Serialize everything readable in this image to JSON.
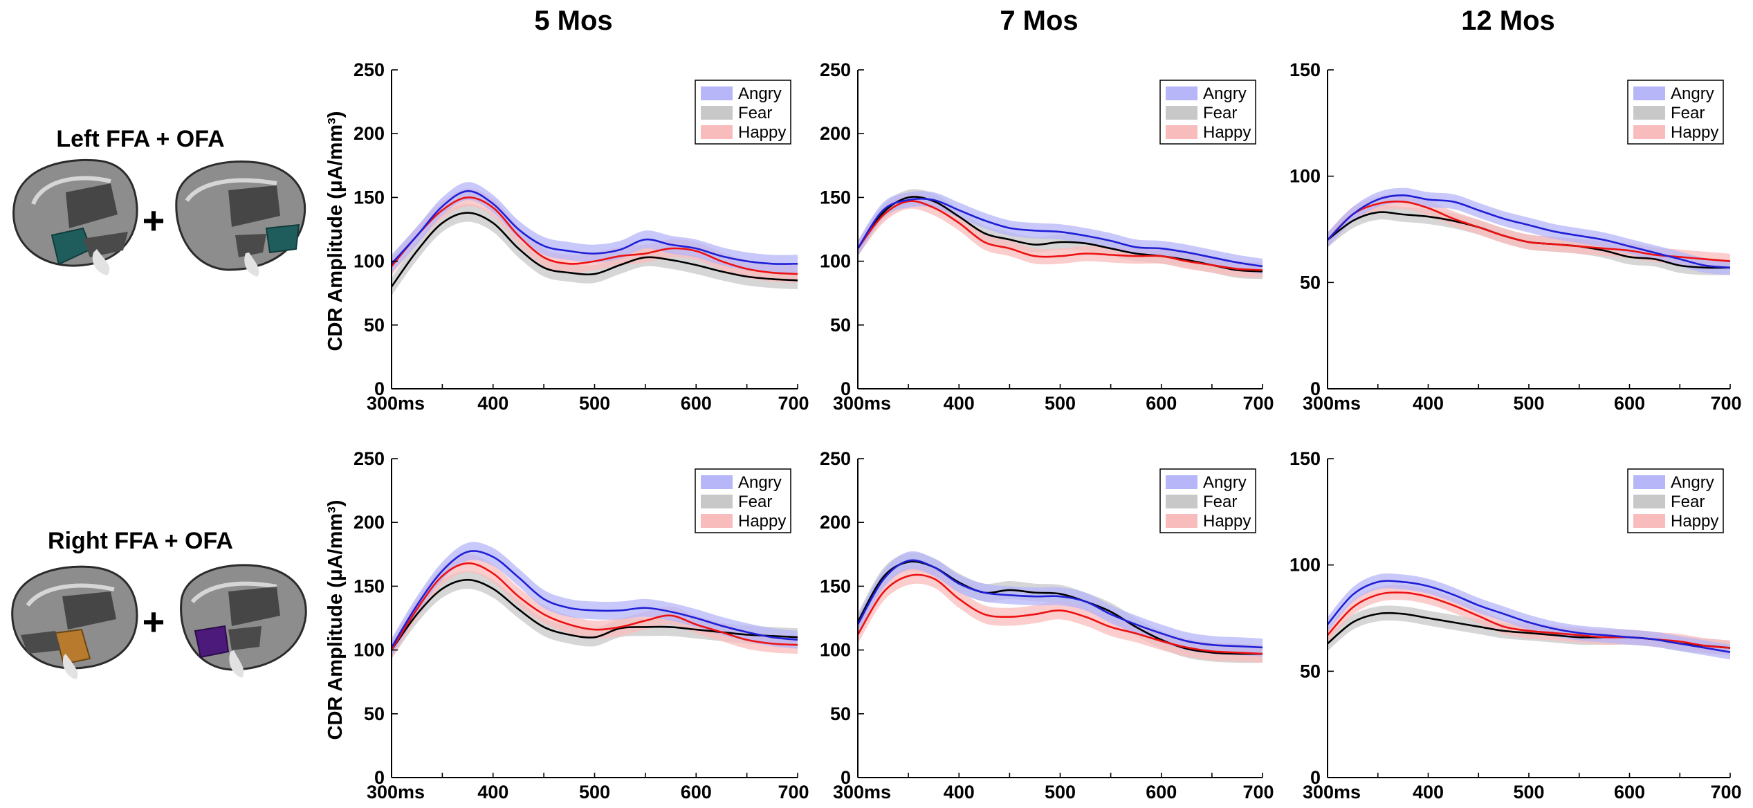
{
  "column_titles": [
    "5 Mos",
    "7 Mos",
    "12 Mos"
  ],
  "row_titles": [
    "Left FFA + OFA",
    "Right FFA + OFA"
  ],
  "plus_sign": "+",
  "colors": {
    "Angry": "#1f1fd6",
    "Fear": "#000000",
    "Happy": "#ee1111",
    "Angry_band": "#b6b6f8",
    "Fear_band": "#c8c8c8",
    "Happy_band": "#f9bcbc",
    "brain_left_region": "#1f5d5d",
    "brain_right_region_1": "#b87a2c",
    "brain_right_region_2": "#4b1a7a"
  },
  "chart_data": [
    {
      "type": "line",
      "panel": "Left FFA + OFA, 5 Mos",
      "xlabel": "",
      "ylabel": "CDR Amplitude (μA/mm³)",
      "xlim": [
        300,
        700
      ],
      "ylim": [
        0,
        250
      ],
      "xticks": [
        300,
        400,
        500,
        600,
        700
      ],
      "xtick_labels": [
        "300ms",
        "400",
        "500",
        "600",
        "700"
      ],
      "yticks": [
        0,
        50,
        100,
        150,
        200,
        250
      ],
      "ytick_labels": [
        "0",
        "50",
        "100",
        "150",
        "200",
        "250"
      ],
      "legend": [
        "Angry",
        "Fear",
        "Happy"
      ],
      "legend_position": "top-right",
      "x": [
        300,
        325,
        350,
        375,
        400,
        425,
        450,
        475,
        500,
        525,
        550,
        575,
        600,
        625,
        650,
        675,
        700
      ],
      "band_halfwidth": 7,
      "series": [
        {
          "name": "Angry",
          "values": [
            98,
            120,
            143,
            155,
            145,
            125,
            112,
            108,
            106,
            109,
            117,
            113,
            110,
            104,
            100,
            98,
            98
          ]
        },
        {
          "name": "Fear",
          "values": [
            80,
            108,
            130,
            138,
            130,
            110,
            95,
            91,
            90,
            97,
            103,
            101,
            97,
            92,
            88,
            86,
            85
          ]
        },
        {
          "name": "Happy",
          "values": [
            96,
            120,
            140,
            150,
            142,
            120,
            103,
            98,
            100,
            104,
            106,
            110,
            108,
            100,
            94,
            91,
            90
          ]
        }
      ]
    },
    {
      "type": "line",
      "panel": "Left FFA + OFA, 7 Mos",
      "xlabel": "",
      "ylabel": "",
      "xlim": [
        300,
        700
      ],
      "ylim": [
        0,
        250
      ],
      "xticks": [
        300,
        400,
        500,
        600,
        700
      ],
      "xtick_labels": [
        "300ms",
        "400",
        "500",
        "600",
        "700"
      ],
      "yticks": [
        0,
        50,
        100,
        150,
        200,
        250
      ],
      "ytick_labels": [
        "0",
        "50",
        "100",
        "150",
        "200",
        "250"
      ],
      "legend": [
        "Angry",
        "Fear",
        "Happy"
      ],
      "legend_position": "top-right",
      "x": [
        300,
        325,
        350,
        375,
        400,
        425,
        450,
        475,
        500,
        525,
        550,
        575,
        600,
        625,
        650,
        675,
        700
      ],
      "band_halfwidth": 6,
      "series": [
        {
          "name": "Angry",
          "values": [
            110,
            140,
            148,
            148,
            140,
            132,
            126,
            124,
            123,
            120,
            116,
            111,
            110,
            107,
            103,
            99,
            96
          ]
        },
        {
          "name": "Fear",
          "values": [
            110,
            138,
            150,
            147,
            135,
            122,
            117,
            113,
            115,
            114,
            110,
            106,
            104,
            101,
            97,
            93,
            92
          ]
        },
        {
          "name": "Happy",
          "values": [
            110,
            136,
            147,
            142,
            130,
            115,
            110,
            104,
            104,
            106,
            105,
            104,
            104,
            100,
            97,
            94,
            93
          ]
        }
      ]
    },
    {
      "type": "line",
      "panel": "Left FFA + OFA, 12 Mos",
      "xlabel": "",
      "ylabel": "",
      "xlim": [
        300,
        700
      ],
      "ylim": [
        0,
        150
      ],
      "xticks": [
        300,
        400,
        500,
        600,
        700
      ],
      "xtick_labels": [
        "300ms",
        "400",
        "500",
        "600",
        "700"
      ],
      "yticks": [
        0,
        50,
        100,
        150
      ],
      "ytick_labels": [
        "0",
        "50",
        "100",
        "150"
      ],
      "legend": [
        "Angry",
        "Fear",
        "Happy"
      ],
      "legend_position": "top-right",
      "x": [
        300,
        325,
        350,
        375,
        400,
        425,
        450,
        475,
        500,
        525,
        550,
        575,
        600,
        625,
        650,
        675,
        700
      ],
      "band_halfwidth": 3.5,
      "series": [
        {
          "name": "Angry",
          "values": [
            70,
            82,
            89,
            91,
            89,
            88,
            84,
            80,
            77,
            74,
            72,
            70,
            67,
            64,
            61,
            58,
            57
          ]
        },
        {
          "name": "Fear",
          "values": [
            70,
            79,
            83,
            82,
            81,
            79,
            76,
            72,
            69,
            68,
            67,
            65,
            62,
            61,
            58,
            57,
            57
          ]
        },
        {
          "name": "Happy",
          "values": [
            70,
            82,
            87,
            88,
            85,
            80,
            76,
            72,
            69,
            68,
            67,
            66,
            65,
            63,
            62,
            61,
            60
          ]
        }
      ]
    },
    {
      "type": "line",
      "panel": "Right FFA + OFA, 5 Mos",
      "xlabel": "",
      "ylabel": "CDR Amplitude (μA/mm³)",
      "xlim": [
        300,
        700
      ],
      "ylim": [
        0,
        250
      ],
      "xticks": [
        300,
        400,
        500,
        600,
        700
      ],
      "xtick_labels": [
        "300ms",
        "400",
        "500",
        "600",
        "700"
      ],
      "yticks": [
        0,
        50,
        100,
        150,
        200,
        250
      ],
      "ytick_labels": [
        "0",
        "50",
        "100",
        "150",
        "200",
        "250"
      ],
      "legend": [
        "Angry",
        "Fear",
        "Happy"
      ],
      "legend_position": "top-right",
      "x": [
        300,
        325,
        350,
        375,
        400,
        425,
        450,
        475,
        500,
        525,
        550,
        575,
        600,
        625,
        650,
        675,
        700
      ],
      "band_halfwidth": 7,
      "series": [
        {
          "name": "Angry",
          "values": [
            102,
            135,
            162,
            177,
            173,
            157,
            140,
            133,
            131,
            131,
            133,
            130,
            125,
            119,
            114,
            110,
            108
          ]
        },
        {
          "name": "Fear",
          "values": [
            100,
            128,
            148,
            155,
            148,
            132,
            118,
            112,
            110,
            117,
            118,
            118,
            116,
            114,
            112,
            111,
            110
          ]
        },
        {
          "name": "Happy",
          "values": [
            100,
            132,
            158,
            168,
            160,
            142,
            128,
            120,
            116,
            118,
            123,
            127,
            120,
            114,
            108,
            105,
            104
          ]
        }
      ]
    },
    {
      "type": "line",
      "panel": "Right FFA + OFA, 7 Mos",
      "xlabel": "",
      "ylabel": "",
      "xlim": [
        300,
        700
      ],
      "ylim": [
        0,
        250
      ],
      "xticks": [
        300,
        400,
        500,
        600,
        700
      ],
      "xtick_labels": [
        "300ms",
        "400",
        "500",
        "600",
        "700"
      ],
      "yticks": [
        0,
        50,
        100,
        150,
        200,
        250
      ],
      "ytick_labels": [
        "0",
        "50",
        "100",
        "150",
        "200",
        "250"
      ],
      "legend": [
        "Angry",
        "Fear",
        "Happy"
      ],
      "legend_position": "top-right",
      "x": [
        300,
        325,
        350,
        375,
        400,
        425,
        450,
        475,
        500,
        525,
        550,
        575,
        600,
        625,
        650,
        675,
        700
      ],
      "band_halfwidth": 7,
      "series": [
        {
          "name": "Angry",
          "values": [
            120,
            155,
            170,
            165,
            152,
            145,
            143,
            142,
            142,
            138,
            128,
            120,
            113,
            107,
            104,
            103,
            102
          ]
        },
        {
          "name": "Fear",
          "values": [
            122,
            157,
            169,
            165,
            153,
            145,
            147,
            145,
            144,
            138,
            130,
            118,
            108,
            101,
            98,
            97,
            97
          ]
        },
        {
          "name": "Happy",
          "values": [
            112,
            145,
            158,
            156,
            140,
            128,
            126,
            128,
            131,
            126,
            118,
            113,
            107,
            102,
            99,
            98,
            97
          ]
        }
      ]
    },
    {
      "type": "line",
      "panel": "Right FFA + OFA, 12 Mos",
      "xlabel": "",
      "ylabel": "",
      "xlim": [
        300,
        700
      ],
      "ylim": [
        0,
        150
      ],
      "xticks": [
        300,
        400,
        500,
        600,
        700
      ],
      "xtick_labels": [
        "300ms",
        "400",
        "500",
        "600",
        "700"
      ],
      "yticks": [
        0,
        50,
        100,
        150
      ],
      "ytick_labels": [
        "0",
        "50",
        "100",
        "150"
      ],
      "legend": [
        "Angry",
        "Fear",
        "Happy"
      ],
      "legend_position": "top-right",
      "x": [
        300,
        325,
        350,
        375,
        400,
        425,
        450,
        475,
        500,
        525,
        550,
        575,
        600,
        625,
        650,
        675,
        700
      ],
      "band_halfwidth": 3.5,
      "series": [
        {
          "name": "Angry",
          "values": [
            72,
            86,
            92,
            92,
            90,
            86,
            81,
            77,
            73,
            70,
            68,
            67,
            66,
            65,
            63,
            61,
            59
          ]
        },
        {
          "name": "Fear",
          "values": [
            63,
            73,
            77,
            77,
            75,
            73,
            71,
            69,
            68,
            67,
            66,
            66,
            66,
            65,
            63,
            62,
            61
          ]
        },
        {
          "name": "Happy",
          "values": [
            67,
            80,
            86,
            87,
            85,
            81,
            76,
            71,
            69,
            68,
            67,
            66,
            66,
            65,
            64,
            62,
            61
          ]
        }
      ]
    }
  ]
}
